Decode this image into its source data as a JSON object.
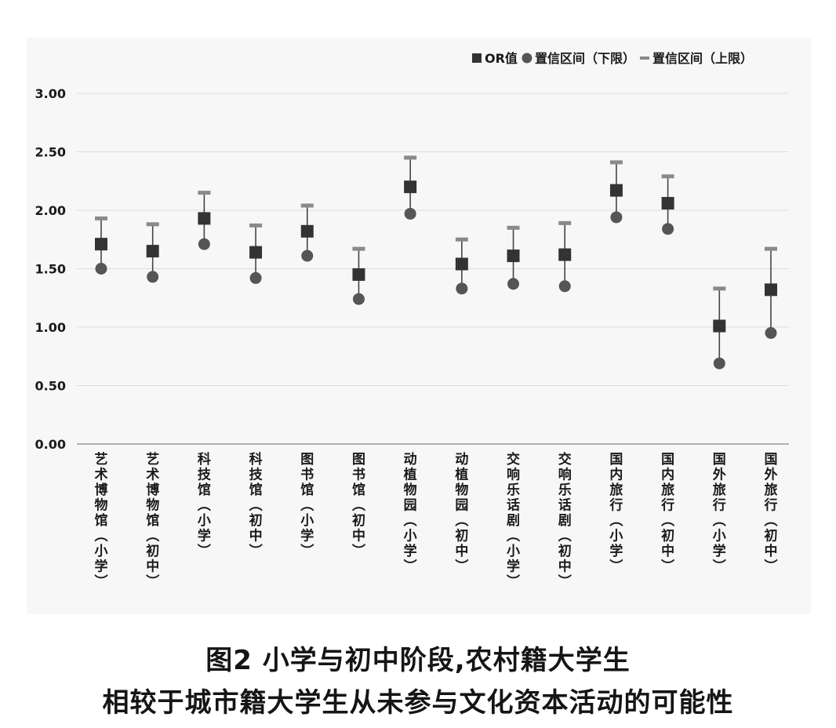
{
  "caption": {
    "line1": "图2  小学与初中阶段,农村籍大学生",
    "line2": "相较于城市籍大学生从未参与文化资本活动的可能性"
  },
  "chart_data": {
    "type": "scatter",
    "title": "",
    "xlabel": "",
    "ylabel": "",
    "ylim": [
      0,
      3
    ],
    "yticks": [
      "0.00",
      "0.50",
      "1.00",
      "1.50",
      "2.00",
      "2.50",
      "3.00"
    ],
    "grid": true,
    "legend_position": "top-right",
    "categories": [
      "艺术博物馆（小学）",
      "艺术博物馆（初中）",
      "科技馆（小学）",
      "科技馆（初中）",
      "图书馆（小学）",
      "图书馆（初中）",
      "动植物园（小学）",
      "动植物园（初中）",
      "交响乐话剧（小学）",
      "交响乐话剧（初中）",
      "国内旅行（小学）",
      "国内旅行（初中）",
      "国外旅行（小学）",
      "国外旅行（初中）"
    ],
    "series": [
      {
        "name": "OR值",
        "marker": "square",
        "color": "#333333",
        "values": [
          1.71,
          1.65,
          1.93,
          1.64,
          1.82,
          1.45,
          2.2,
          1.54,
          1.61,
          1.62,
          2.17,
          2.06,
          1.01,
          1.32
        ]
      },
      {
        "name": "置信区间（下限）",
        "marker": "circle",
        "color": "#555555",
        "values": [
          1.5,
          1.43,
          1.71,
          1.42,
          1.61,
          1.24,
          1.97,
          1.33,
          1.37,
          1.35,
          1.94,
          1.84,
          0.69,
          0.95
        ]
      },
      {
        "name": "置信区间（上限）",
        "marker": "dash",
        "color": "#8a8a8a",
        "values": [
          1.93,
          1.88,
          2.15,
          1.87,
          2.04,
          1.67,
          2.45,
          1.75,
          1.85,
          1.89,
          2.41,
          2.29,
          1.33,
          1.67
        ]
      }
    ]
  }
}
